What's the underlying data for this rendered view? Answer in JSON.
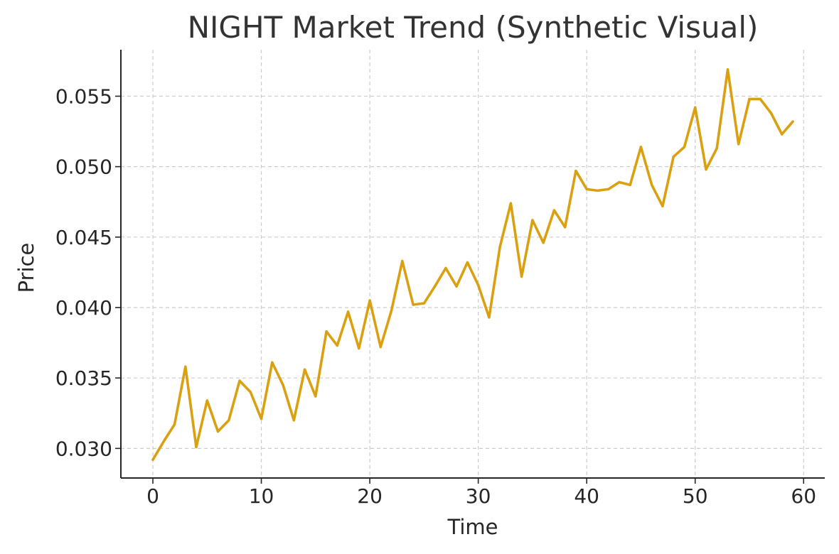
{
  "chart_data": {
    "type": "line",
    "title": "NIGHT Market Trend (Synthetic Visual)",
    "xlabel": "Time",
    "ylabel": "Price",
    "xlim": [
      -2.95,
      61.95
    ],
    "ylim": [
      0.0279,
      0.0583
    ],
    "xticks": [
      0,
      10,
      20,
      30,
      40,
      50,
      60
    ],
    "xtick_labels": [
      "0",
      "10",
      "20",
      "30",
      "40",
      "50",
      "60"
    ],
    "yticks": [
      0.03,
      0.035,
      0.04,
      0.045,
      0.05,
      0.055
    ],
    "ytick_labels": [
      "0.030",
      "0.035",
      "0.040",
      "0.045",
      "0.050",
      "0.055"
    ],
    "grid": true,
    "series": [
      {
        "color": "#DAA010",
        "x": [
          0,
          1,
          2,
          3,
          4,
          5,
          6,
          7,
          8,
          9,
          10,
          11,
          12,
          13,
          14,
          15,
          16,
          17,
          18,
          19,
          20,
          21,
          22,
          23,
          24,
          25,
          26,
          27,
          28,
          29,
          30,
          31,
          32,
          33,
          34,
          35,
          36,
          37,
          38,
          39,
          40,
          41,
          42,
          43,
          44,
          45,
          46,
          47,
          48,
          49,
          50,
          51,
          52,
          53,
          54,
          55,
          56,
          57,
          58,
          59
        ],
        "y": [
          0.0292,
          0.0305,
          0.0317,
          0.0358,
          0.0301,
          0.0334,
          0.0312,
          0.032,
          0.0348,
          0.034,
          0.0321,
          0.0361,
          0.0345,
          0.032,
          0.0356,
          0.0337,
          0.0383,
          0.0373,
          0.0397,
          0.0371,
          0.0405,
          0.0372,
          0.0398,
          0.0433,
          0.0402,
          0.0403,
          0.0415,
          0.0428,
          0.0415,
          0.0432,
          0.0416,
          0.0393,
          0.0443,
          0.0474,
          0.0422,
          0.0462,
          0.0446,
          0.0469,
          0.0457,
          0.0497,
          0.0484,
          0.0483,
          0.0484,
          0.0489,
          0.0487,
          0.0514,
          0.0487,
          0.0472,
          0.0507,
          0.0514,
          0.0542,
          0.0498,
          0.0513,
          0.0569,
          0.0516,
          0.0548,
          0.0548,
          0.0538,
          0.0523,
          0.0532
        ]
      }
    ]
  }
}
